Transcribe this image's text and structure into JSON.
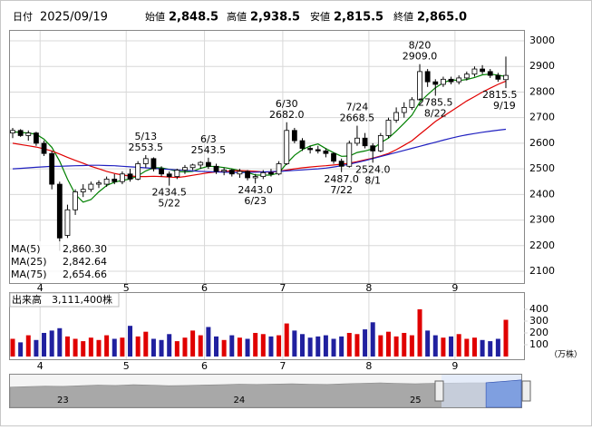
{
  "header": {
    "date_label": "日付",
    "date": "2025/09/19",
    "items": [
      {
        "label": "始値",
        "value": "2,848.5",
        "color": "#000000"
      },
      {
        "label": "高値",
        "value": "2,938.5",
        "color": "#e00000"
      },
      {
        "label": "安値",
        "value": "2,815.5",
        "color": "#008000"
      },
      {
        "label": "終値",
        "value": "2,865.0",
        "color": "#000000"
      }
    ]
  },
  "chart_data": {
    "type": "candlestick",
    "up_color": "#ffffff",
    "down_color": "#000000",
    "categories": [
      null,
      null,
      null,
      null,
      "4",
      null,
      null,
      null,
      null,
      null,
      null,
      null,
      null,
      null,
      null,
      "5",
      null,
      null,
      null,
      null,
      null,
      null,
      null,
      null,
      null,
      "6",
      null,
      null,
      null,
      null,
      null,
      null,
      null,
      null,
      null,
      "7",
      null,
      null,
      null,
      null,
      null,
      null,
      null,
      null,
      null,
      null,
      "8",
      null,
      null,
      null,
      null,
      null,
      null,
      null,
      null,
      null,
      null,
      "9",
      null,
      null,
      null,
      null,
      null,
      null
    ],
    "open": [
      2640,
      2650,
      2630,
      2640,
      2600,
      2560,
      2440,
      2240,
      2340,
      2410,
      2420,
      2440,
      2440,
      2460,
      2450,
      2480,
      2460,
      2520,
      2540,
      2500,
      2480,
      2470,
      2495,
      2505,
      2515,
      2525,
      2510,
      2490,
      2495,
      2480,
      2490,
      2465,
      2470,
      2485,
      2480,
      2520,
      2650,
      2610,
      2580,
      2575,
      2570,
      2560,
      2530,
      2510,
      2600,
      2620,
      2590,
      2570,
      2630,
      2690,
      2720,
      2740,
      2770,
      2880,
      2840,
      2830,
      2850,
      2840,
      2855,
      2870,
      2890,
      2880,
      2865,
      2848.5
    ],
    "high": [
      2660,
      2655,
      2650,
      2645,
      2610,
      2570,
      2450,
      2360,
      2420,
      2440,
      2450,
      2455,
      2470,
      2480,
      2490,
      2500,
      2530,
      2553.5,
      2545,
      2510,
      2490,
      2500,
      2515,
      2520,
      2530,
      2543.5,
      2520,
      2505,
      2500,
      2500,
      2495,
      2480,
      2495,
      2500,
      2530,
      2682,
      2660,
      2620,
      2590,
      2590,
      2580,
      2565,
      2540,
      2610,
      2668.5,
      2640,
      2600,
      2640,
      2700,
      2740,
      2760,
      2780,
      2909,
      2890,
      2850,
      2860,
      2860,
      2865,
      2880,
      2900,
      2905,
      2890,
      2875,
      2938.5
    ],
    "low": [
      2620,
      2625,
      2610,
      2590,
      2550,
      2420,
      2180,
      2230,
      2320,
      2390,
      2410,
      2425,
      2430,
      2440,
      2440,
      2450,
      2455,
      2505,
      2490,
      2470,
      2434.5,
      2460,
      2480,
      2495,
      2500,
      2500,
      2480,
      2475,
      2470,
      2465,
      2455,
      2443,
      2460,
      2470,
      2475,
      2515,
      2600,
      2570,
      2560,
      2560,
      2545,
      2520,
      2487,
      2505,
      2590,
      2580,
      2524,
      2565,
      2620,
      2680,
      2700,
      2730,
      2765,
      2820,
      2785.5,
      2820,
      2830,
      2830,
      2845,
      2860,
      2870,
      2855,
      2840,
      2815.5
    ],
    "close": [
      2650,
      2630,
      2640,
      2600,
      2560,
      2440,
      2230,
      2340,
      2410,
      2420,
      2440,
      2445,
      2460,
      2450,
      2480,
      2460,
      2520,
      2540,
      2500,
      2480,
      2470,
      2495,
      2505,
      2515,
      2525,
      2510,
      2490,
      2495,
      2480,
      2490,
      2465,
      2470,
      2485,
      2480,
      2520,
      2650,
      2610,
      2580,
      2575,
      2570,
      2560,
      2530,
      2510,
      2600,
      2620,
      2590,
      2570,
      2630,
      2690,
      2720,
      2740,
      2770,
      2880,
      2840,
      2830,
      2850,
      2840,
      2855,
      2870,
      2890,
      2880,
      2865,
      2850,
      2865
    ],
    "ylim": [
      2054,
      3039
    ],
    "yticks": [
      2100,
      2200,
      2300,
      2400,
      2500,
      2600,
      2700,
      2800,
      2900,
      3000
    ],
    "grid": true,
    "series": [
      {
        "name": "MA(5)",
        "color": "#008000",
        "last_label": "2,860.30",
        "values": [
          2645,
          2642,
          2640,
          2635,
          2616,
          2584,
          2530,
          2460,
          2400,
          2370,
          2380,
          2410,
          2435,
          2448,
          2455,
          2460,
          2473,
          2492,
          2504,
          2504,
          2498,
          2490,
          2488,
          2490,
          2502,
          2510,
          2509,
          2505,
          2500,
          2493,
          2486,
          2476,
          2475,
          2476,
          2484,
          2521,
          2553,
          2575,
          2589,
          2597,
          2579,
          2563,
          2549,
          2550,
          2564,
          2570,
          2578,
          2602,
          2620,
          2648,
          2678,
          2710,
          2760,
          2790,
          2817,
          2836,
          2848,
          2845,
          2849,
          2857,
          2867,
          2870,
          2866,
          2860.3
        ]
      },
      {
        "name": "MA(25)",
        "color": "#e00000",
        "last_label": "2,842.64",
        "values": [
          2600,
          2595,
          2590,
          2585,
          2578,
          2570,
          2558,
          2545,
          2533,
          2522,
          2510,
          2500,
          2490,
          2482,
          2476,
          2472,
          2470,
          2470,
          2471,
          2470,
          2468,
          2466,
          2470,
          2475,
          2480,
          2485,
          2488,
          2490,
          2492,
          2493,
          2492,
          2490,
          2488,
          2487,
          2490,
          2495,
          2500,
          2504,
          2507,
          2510,
          2512,
          2515,
          2518,
          2522,
          2528,
          2535,
          2542,
          2550,
          2560,
          2575,
          2592,
          2610,
          2635,
          2660,
          2685,
          2705,
          2725,
          2745,
          2765,
          2782,
          2800,
          2815,
          2830,
          2842.64
        ]
      },
      {
        "name": "MA(75)",
        "color": "#2020c0",
        "last_label": "2,654.66",
        "values": [
          2500,
          2502,
          2504,
          2506,
          2508,
          2510,
          2510,
          2511,
          2512,
          2513,
          2514,
          2514,
          2513,
          2512,
          2510,
          2508,
          2506,
          2504,
          2502,
          2500,
          2498,
          2496,
          2494,
          2492,
          2490,
          2489,
          2488,
          2487,
          2486,
          2486,
          2486,
          2487,
          2488,
          2489,
          2490,
          2492,
          2494,
          2496,
          2498,
          2500,
          2503,
          2507,
          2512,
          2518,
          2525,
          2532,
          2540,
          2548,
          2556,
          2564,
          2572,
          2580,
          2588,
          2596,
          2604,
          2612,
          2620,
          2627,
          2633,
          2638,
          2643,
          2647,
          2651,
          2654.66
        ]
      }
    ],
    "annotations": [
      {
        "date": "5/13",
        "value": 2553.5,
        "label": "2553.5"
      },
      {
        "date": "5/22",
        "value": 2434.5,
        "label": "2434.5"
      },
      {
        "date": "6/3",
        "value": 2543.5,
        "label": "2543.5"
      },
      {
        "date": "6/23",
        "value": 2443,
        "label": "2443.0"
      },
      {
        "date": "6/30",
        "value": 2682,
        "label": "2682.0"
      },
      {
        "date": "7/22",
        "value": 2487,
        "label": "2487.0"
      },
      {
        "date": "7/24",
        "value": 2668.5,
        "label": "2668.5"
      },
      {
        "date": "8/1",
        "value": 2524,
        "label": "2524.0"
      },
      {
        "date": "8/20",
        "value": 2909,
        "label": "2909.0"
      },
      {
        "date": "8/22",
        "value": 2785.5,
        "label": "2785.5"
      },
      {
        "date": "9/19",
        "value": 2815.5,
        "label": "2815.5"
      }
    ],
    "volume": {
      "title": "出来高",
      "last_label": "3,111,400株",
      "unit": "（万株）",
      "up_color": "#e00000",
      "down_color": "#20209f",
      "ylim": [
        0,
        538
      ],
      "yticks": [
        100,
        200,
        300,
        400
      ],
      "values": [
        150,
        120,
        180,
        140,
        200,
        220,
        240,
        170,
        150,
        130,
        160,
        140,
        180,
        150,
        160,
        260,
        170,
        210,
        150,
        140,
        190,
        130,
        160,
        220,
        180,
        250,
        170,
        140,
        180,
        160,
        150,
        200,
        190,
        170,
        180,
        280,
        220,
        190,
        160,
        170,
        180,
        150,
        170,
        200,
        190,
        230,
        290,
        180,
        210,
        170,
        200,
        180,
        400,
        220,
        180,
        160,
        170,
        190,
        150,
        160,
        140,
        130,
        150,
        311.14
      ]
    },
    "navigator": {
      "color": "#a8a8a8",
      "selected_color": "#7f9fe0",
      "ylim": [
        0,
        3400
      ],
      "categories": [
        null,
        null,
        null,
        "23",
        null,
        null,
        null,
        null,
        null,
        null,
        null,
        null,
        null,
        "24",
        null,
        null,
        null,
        null,
        null,
        null,
        null,
        null,
        null,
        "25",
        null,
        null,
        null,
        null,
        null,
        null
      ],
      "values": [
        2100,
        2150,
        2200,
        2180,
        2250,
        2300,
        2280,
        2350,
        2300,
        2250,
        2280,
        2320,
        2350,
        2400,
        2380,
        2420,
        2450,
        2400,
        2380,
        2450,
        2500,
        2550,
        2480,
        2450,
        2500,
        2520,
        2550,
        2560,
        2700,
        2850
      ]
    }
  }
}
